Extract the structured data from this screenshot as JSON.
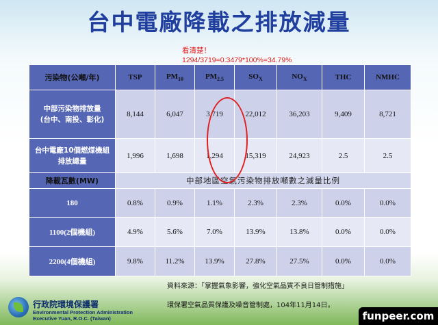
{
  "title": "台中電廠降載之排放減量",
  "note": {
    "line1": "看清楚！",
    "line2": "1294/3719=0.3479*100%=34.79%"
  },
  "table": {
    "header": {
      "label": "污染物(公噸/年)",
      "cols": [
        {
          "main": "TSP",
          "sub": ""
        },
        {
          "main": "PM",
          "sub": "10"
        },
        {
          "main": "PM",
          "sub": "2.5"
        },
        {
          "main": "SO",
          "sub": "X"
        },
        {
          "main": "NO",
          "sub": "X"
        },
        {
          "main": "THC",
          "sub": ""
        },
        {
          "main": "NMHC",
          "sub": ""
        }
      ]
    },
    "row1": {
      "label_line1": "中部污染物排放量",
      "label_line2": "(台中、南投、彰化)",
      "values": [
        "8,144",
        "6,047",
        "3,719",
        "22,012",
        "36,203",
        "9,409",
        "8,721"
      ]
    },
    "row2": {
      "label_line1": "台中電廠10個燃煤機組",
      "label_line2": "排放總量",
      "values": [
        "1,996",
        "1,698",
        "1,294",
        "15,319",
        "24,923",
        "2.5",
        "2.5"
      ]
    },
    "subheader": {
      "label": "降載瓦數(MW)",
      "caption": "中部地區空氣污染物排放噸數之減量比例"
    },
    "rows": [
      {
        "label": "180",
        "values": [
          "0.8%",
          "0.9%",
          "1.1%",
          "2.3%",
          "2.3%",
          "0.0%",
          "0.0%"
        ]
      },
      {
        "label": "1100(2個機組)",
        "values": [
          "4.9%",
          "5.6%",
          "7.0%",
          "13.9%",
          "13.8%",
          "0.0%",
          "0.0%"
        ]
      },
      {
        "label": "2200(4個機組)",
        "values": [
          "9.8%",
          "11.2%",
          "13.9%",
          "27.8%",
          "27.5%",
          "0.0%",
          "0.0%"
        ]
      }
    ]
  },
  "footer": {
    "logo_cn": "行政院環境保護署",
    "logo_en1": "Environmental Protection Administration",
    "logo_en2": "Executive Yuan, R.O.C. (Taiwan)",
    "source1": "資料來源：「掌握氣象影響，強化空氣品質不良日管制措施」",
    "source2": "環保署空氣品質保護及噪音管制處，104年11月14日。"
  },
  "watermark": "funpeer.com",
  "colors": {
    "title": "#1f3e9e",
    "header_bg": "#5566b4",
    "row_light": "#e6e9f5",
    "row_mid": "#cdd2ea",
    "note": "#e01818",
    "circle": "#e02020"
  }
}
